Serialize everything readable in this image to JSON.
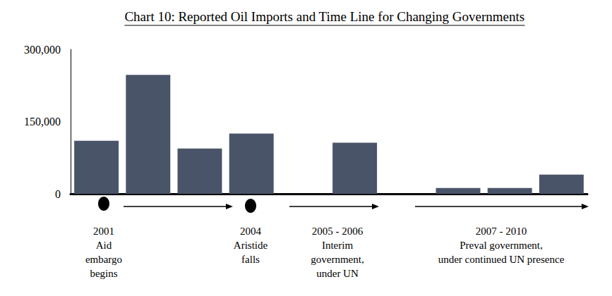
{
  "chart_data": {
    "type": "bar",
    "title": "Chart 10: Reported Oil Imports and Time Line for Changing Governments",
    "categories": [
      null,
      null,
      null,
      null,
      null,
      null,
      null,
      null,
      null,
      null
    ],
    "values": [
      110000,
      247000,
      94000,
      125000,
      null,
      106000,
      null,
      12000,
      12000,
      40000
    ],
    "color": "#4a5468",
    "ylim": [
      0,
      300000
    ],
    "yticks": [
      0,
      {
        "value": 150000,
        "label": "150,000"
      },
      {
        "value": 300000,
        "label": "300,000"
      }
    ],
    "grid": false,
    "data_labels": false,
    "tick_labels": "y",
    "annotations": [
      "2001\nAid\nembargo\nbegins",
      "2004\nAristide\nfalls",
      "2005 - 2006\nInterim\ngovernment,\nunder UN",
      "2007 - 2010\nPreval government,\nunder continued UN presence"
    ]
  }
}
